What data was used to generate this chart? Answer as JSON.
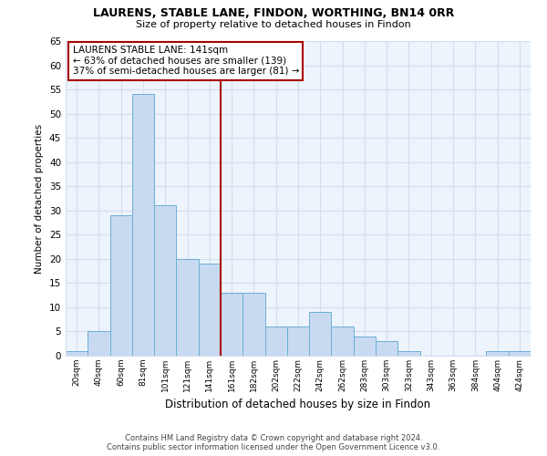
{
  "title": "LAURENS, STABLE LANE, FINDON, WORTHING, BN14 0RR",
  "subtitle": "Size of property relative to detached houses in Findon",
  "xlabel": "Distribution of detached houses by size in Findon",
  "ylabel": "Number of detached properties",
  "bar_labels": [
    "20sqm",
    "40sqm",
    "60sqm",
    "81sqm",
    "101sqm",
    "121sqm",
    "141sqm",
    "161sqm",
    "182sqm",
    "202sqm",
    "222sqm",
    "242sqm",
    "262sqm",
    "283sqm",
    "303sqm",
    "323sqm",
    "343sqm",
    "363sqm",
    "384sqm",
    "404sqm",
    "424sqm"
  ],
  "bar_values": [
    1,
    5,
    29,
    54,
    31,
    20,
    19,
    13,
    13,
    6,
    6,
    9,
    6,
    4,
    3,
    1,
    0,
    0,
    0,
    1,
    1
  ],
  "bar_color": "#c8daf0",
  "bar_edge_color": "#6baed6",
  "highlight_index": 6,
  "highlight_line_color": "#aa0000",
  "ylim": [
    0,
    65
  ],
  "yticks": [
    0,
    5,
    10,
    15,
    20,
    25,
    30,
    35,
    40,
    45,
    50,
    55,
    60,
    65
  ],
  "annotation_title": "LAURENS STABLE LANE: 141sqm",
  "annotation_line1": "← 63% of detached houses are smaller (139)",
  "annotation_line2": "37% of semi-detached houses are larger (81) →",
  "annotation_box_color": "#ffffff",
  "annotation_box_edge": "#aa0000",
  "footer_line1": "Contains HM Land Registry data © Crown copyright and database right 2024.",
  "footer_line2": "Contains public sector information licensed under the Open Government Licence v3.0.",
  "bg_color": "#ffffff",
  "grid_color": "#d0dff0"
}
